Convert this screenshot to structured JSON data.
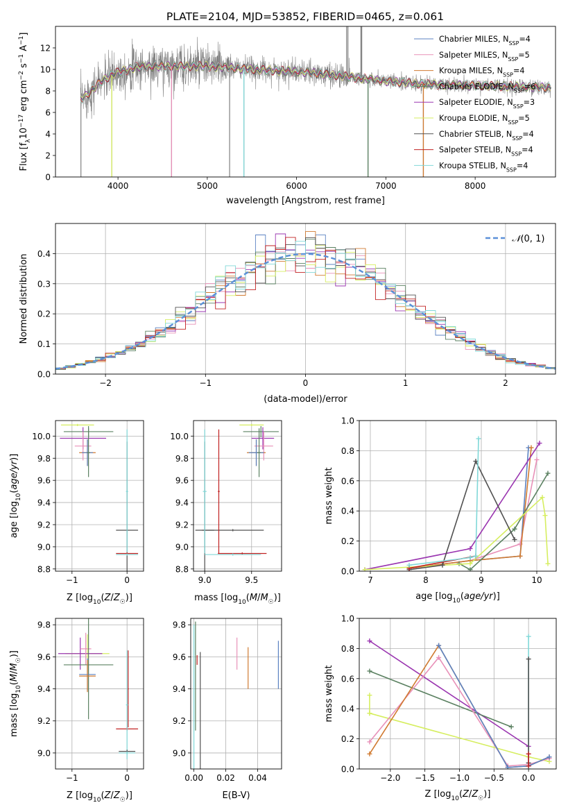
{
  "figure_title": "PLATE=2104, MJD=53852, FIBERID=0465, z=0.061",
  "colors": {
    "Chabrier MILES": "#5b82c2",
    "Salpeter MILES": "#e890b8",
    "Kroupa MILES": "#d07a30",
    "Chabrier ELODIE": "#5a8060",
    "Salpeter ELODIE": "#9a35b0",
    "Kroupa ELODIE": "#d6ee60",
    "Chabrier STELIB": "#505050",
    "Salpeter STELIB": "#c02020",
    "Kroupa STELIB": "#80d8d8",
    "normal": "#5b90d8",
    "data": "#808080"
  },
  "chart_data": [
    {
      "id": "spectrum",
      "type": "line",
      "xlabel": "wavelength [Angstrom, rest frame]",
      "ylabel": "Flux [f_λ10^-17 erg cm^-2 s^-1 A^-1]",
      "xlim": [
        3300,
        8900
      ],
      "ylim": [
        0,
        14
      ],
      "xticks": [
        4000,
        5000,
        6000,
        7000,
        8000
      ],
      "yticks": [
        0,
        2,
        4,
        6,
        8,
        10,
        12
      ],
      "grid": false,
      "legend": "top-right",
      "data_series": {
        "name": "data",
        "x_range": [
          3580,
          8850
        ]
      },
      "series": [
        {
          "name": "Chabrier MILES",
          "nssp": "4"
        },
        {
          "name": "Salpeter MILES",
          "nssp": "5"
        },
        {
          "name": "Kroupa MILES",
          "nssp": "4"
        },
        {
          "name": "Chabrier ELODIE",
          "nssp": "6"
        },
        {
          "name": "Salpeter ELODIE",
          "nssp": "3"
        },
        {
          "name": "Kroupa ELODIE",
          "nssp": "5"
        },
        {
          "name": "Chabrier STELIB",
          "nssp": "4"
        },
        {
          "name": "Salpeter STELIB",
          "nssp": "4"
        },
        {
          "name": "Kroupa STELIB",
          "nssp": "4"
        }
      ],
      "continuum_profile": [
        [
          3580,
          7.2
        ],
        [
          3650,
          7.6
        ],
        [
          3800,
          8.8
        ],
        [
          3950,
          9.6
        ],
        [
          4200,
          10.2
        ],
        [
          4500,
          10.3
        ],
        [
          5000,
          10.3
        ],
        [
          5500,
          10.0
        ],
        [
          6000,
          9.8
        ],
        [
          6500,
          9.4
        ],
        [
          7000,
          8.9
        ],
        [
          7500,
          8.6
        ],
        [
          8000,
          8.5
        ],
        [
          8500,
          8.4
        ],
        [
          8850,
          8.3
        ]
      ],
      "spikes": [
        {
          "x": 3585,
          "y": 0
        },
        {
          "x": 3930,
          "y": 0
        },
        {
          "x": 4600,
          "y": 0
        },
        {
          "x": 5250,
          "y": 0
        },
        {
          "x": 5410,
          "y": 0
        },
        {
          "x": 6560,
          "y": 14
        },
        {
          "x": 6575,
          "y": 14
        },
        {
          "x": 6720,
          "y": 14
        },
        {
          "x": 6730,
          "y": 14
        },
        {
          "x": 6800,
          "y": 0
        },
        {
          "x": 7420,
          "y": 0
        }
      ]
    },
    {
      "id": "residuals",
      "type": "histogram",
      "xlabel": "(data-model)/error",
      "ylabel": "Normed distribution",
      "xlim": [
        -2.5,
        2.5
      ],
      "ylim": [
        0,
        0.5
      ],
      "xticks": [
        -2,
        -1,
        0,
        1,
        2
      ],
      "yticks": [
        0,
        0.1,
        0.2,
        0.3,
        0.4
      ],
      "grid": true,
      "legend": "top-right",
      "reference_label": "N(0,1)",
      "bin_width": 0.1,
      "bin_start": -2.5,
      "n_bins": 50
    },
    {
      "id": "age-vs-Z",
      "type": "errorbar",
      "xlabel": "Z [log10(Z/Z⊙)]",
      "ylabel": "age [log10(age/yr)]",
      "xlim": [
        -1.3,
        0.3
      ],
      "ylim": [
        8.78,
        10.14
      ],
      "xticks": [
        -1,
        0
      ],
      "yticks": [
        8.8,
        9.0,
        9.2,
        9.4,
        9.6,
        9.8,
        10.0
      ],
      "grid": true,
      "points": [
        {
          "series": "Kroupa ELODIE",
          "x": -0.9,
          "y": 10.1,
          "xerr": 0.3,
          "yerr": 0.01
        },
        {
          "series": "Chabrier ELODIE",
          "x": -0.7,
          "y": 10.04,
          "xerr": 0.45,
          "yerr": 0.05
        },
        {
          "series": "Salpeter ELODIE",
          "x": -0.8,
          "y": 9.98,
          "xerr": 0.42,
          "yerr": 0.1
        },
        {
          "series": "Salpeter MILES",
          "x": -0.8,
          "y": 9.91,
          "xerr": 0.15,
          "yerr": 0.13
        },
        {
          "series": "Kroupa MILES",
          "x": -0.72,
          "y": 9.85,
          "xerr": 0.15,
          "yerr": 0.12
        },
        {
          "series": "Chabrier MILES",
          "x": -0.72,
          "y": 9.85,
          "xerr": 0.1,
          "yerr": 0.12
        },
        {
          "series": "Chabrier ELODIE",
          "x": -0.7,
          "y": 9.85,
          "xerr": 0.03,
          "yerr": 0.22
        },
        {
          "series": "Chabrier STELIB",
          "x": 0.0,
          "y": 9.15,
          "xerr": 0.2,
          "yerr": 0.8
        },
        {
          "series": "Kroupa STELIB",
          "x": 0.0,
          "y": 9.5,
          "xerr": 0.02,
          "yerr": 0.56
        },
        {
          "series": "Salpeter STELIB",
          "x": 0.0,
          "y": 8.94,
          "xerr": 0.2,
          "yerr": 0.01
        },
        {
          "series": "Kroupa STELIB",
          "x": 0.0,
          "y": 8.93,
          "xerr": 0.2,
          "yerr": 0.01
        }
      ]
    },
    {
      "id": "age-vs-mass",
      "type": "errorbar",
      "xlabel": "mass [log10(M/M⊙)]",
      "ylabel": "",
      "xlim": [
        8.88,
        9.82
      ],
      "ylim": [
        8.78,
        10.14
      ],
      "xticks": [
        9.0,
        9.5
      ],
      "yticks": [
        8.8,
        9.0,
        9.2,
        9.4,
        9.6,
        9.8,
        10.0
      ],
      "grid": true,
      "points": [
        {
          "series": "Kroupa ELODIE",
          "x": 9.5,
          "y": 10.1,
          "xerr": 0.13,
          "yerr": 0.01
        },
        {
          "series": "Chabrier ELODIE",
          "x": 9.6,
          "y": 10.04,
          "xerr": 0.19,
          "yerr": 0.05
        },
        {
          "series": "Salpeter ELODIE",
          "x": 9.62,
          "y": 9.98,
          "xerr": 0.12,
          "yerr": 0.1
        },
        {
          "series": "Salpeter MILES",
          "x": 9.63,
          "y": 9.91,
          "xerr": 0.1,
          "yerr": 0.13
        },
        {
          "series": "Kroupa MILES",
          "x": 9.55,
          "y": 9.85,
          "xerr": 0.1,
          "yerr": 0.12
        },
        {
          "series": "Chabrier MILES",
          "x": 9.55,
          "y": 9.85,
          "xerr": 0.08,
          "yerr": 0.12
        },
        {
          "series": "Chabrier ELODIE",
          "x": 9.58,
          "y": 9.85,
          "xerr": 0.02,
          "yerr": 0.22
        },
        {
          "series": "Chabrier STELIB",
          "x": 9.0,
          "y": 9.15,
          "xerr": 0.1,
          "yerr": 0.8
        },
        {
          "series": "Chabrier STELIB",
          "x": 9.3,
          "y": 9.15,
          "xerr": 0.33,
          "yerr": 0.01
        },
        {
          "series": "Salpeter STELIB",
          "x": 9.15,
          "y": 9.5,
          "xerr": 0.01,
          "yerr": 0.56
        },
        {
          "series": "Kroupa STELIB",
          "x": 9.0,
          "y": 9.5,
          "xerr": 0.02,
          "yerr": 0.56
        },
        {
          "series": "Salpeter STELIB",
          "x": 9.4,
          "y": 8.94,
          "xerr": 0.26,
          "yerr": 0.01
        },
        {
          "series": "Kroupa STELIB",
          "x": 9.3,
          "y": 8.93,
          "xerr": 0.3,
          "yerr": 0.01
        }
      ]
    },
    {
      "id": "weight-vs-age",
      "type": "line",
      "xlabel": "age [log10(age/yr)]",
      "ylabel": "mass weight",
      "xlim": [
        6.8,
        10.35
      ],
      "ylim": [
        0,
        1.0
      ],
      "xticks": [
        7,
        8,
        9,
        10
      ],
      "yticks": [
        0.0,
        0.2,
        0.4,
        0.6,
        0.8,
        1.0
      ],
      "grid": true,
      "series": [
        {
          "name": "Chabrier MILES",
          "x": [
            7.7,
            8.8,
            9.7,
            9.85
          ],
          "y": [
            0.02,
            0.07,
            0.1,
            0.82
          ]
        },
        {
          "name": "Salpeter MILES",
          "x": [
            7.7,
            8.8,
            9.7,
            10.0
          ],
          "y": [
            0.02,
            0.07,
            0.18,
            0.74
          ]
        },
        {
          "name": "Kroupa MILES",
          "x": [
            7.7,
            8.8,
            9.7,
            9.9
          ],
          "y": [
            0.02,
            0.07,
            0.1,
            0.82
          ]
        },
        {
          "name": "Chabrier ELODIE",
          "x": [
            8.6,
            8.8,
            9.6,
            10.2
          ],
          "y": [
            0.05,
            0.01,
            0.28,
            0.65
          ]
        },
        {
          "name": "Salpeter ELODIE",
          "x": [
            6.9,
            8.8,
            10.05
          ],
          "y": [
            0.01,
            0.15,
            0.85
          ]
        },
        {
          "name": "Kroupa ELODIE",
          "x": [
            6.9,
            8.8,
            10.1,
            10.15,
            10.2
          ],
          "y": [
            0.01,
            0.05,
            0.49,
            0.37,
            0.05
          ]
        },
        {
          "name": "Chabrier STELIB",
          "x": [
            7.7,
            8.3,
            8.9,
            9.6
          ],
          "y": [
            0.01,
            0.04,
            0.73,
            0.21
          ]
        },
        {
          "name": "Salpeter STELIB",
          "x": [
            7.7,
            8.9
          ],
          "y": [
            0.02,
            0.1
          ]
        },
        {
          "name": "Kroupa STELIB",
          "x": [
            7.7,
            8.8,
            8.9,
            8.95
          ],
          "y": [
            0.04,
            0.09,
            0.1,
            0.88
          ]
        }
      ]
    },
    {
      "id": "mass-vs-Z",
      "type": "errorbar",
      "xlabel": "Z [log10(Z/Z⊙)]",
      "ylabel": "mass [log10(M/M⊙)]",
      "xlim": [
        -1.3,
        0.3
      ],
      "ylim": [
        8.9,
        9.84
      ],
      "xticks": [
        -1,
        0
      ],
      "yticks": [
        9.0,
        9.2,
        9.4,
        9.6,
        9.8
      ],
      "grid": true,
      "points": [
        {
          "series": "Kroupa ELODIE",
          "x": -0.72,
          "y": 9.62,
          "xerr": 0.4,
          "yerr": 0.12
        },
        {
          "series": "Salpeter ELODIE",
          "x": -0.85,
          "y": 9.62,
          "xerr": 0.4,
          "yerr": 0.1
        },
        {
          "series": "Salpeter MILES",
          "x": -0.75,
          "y": 9.65,
          "xerr": 0.1,
          "yerr": 0.1
        },
        {
          "series": "Chabrier ELODIE",
          "x": -0.7,
          "y": 9.55,
          "xerr": 0.45,
          "yerr": 0.34
        },
        {
          "series": "Chabrier MILES",
          "x": -0.72,
          "y": 9.49,
          "xerr": 0.15,
          "yerr": 0.1
        },
        {
          "series": "Kroupa MILES",
          "x": -0.72,
          "y": 9.48,
          "xerr": 0.15,
          "yerr": 0.1
        },
        {
          "series": "Salpeter STELIB",
          "x": 0.0,
          "y": 9.15,
          "xerr": 0.2,
          "yerr": 0.01
        },
        {
          "series": "Salpeter STELIB",
          "x": 0.02,
          "y": 9.4,
          "xerr": 0.01,
          "yerr": 0.24
        },
        {
          "series": "Kroupa STELIB",
          "x": 0.0,
          "y": 9.3,
          "xerr": 0.02,
          "yerr": 0.34
        },
        {
          "series": "Chabrier STELIB",
          "x": 0.0,
          "y": 9.01,
          "xerr": 0.15,
          "yerr": 0.01
        },
        {
          "series": "Kroupa STELIB",
          "x": 0.0,
          "y": 9.0,
          "xerr": 0.15,
          "yerr": 0.01
        }
      ]
    },
    {
      "id": "mass-vs-EBV",
      "type": "errorbar",
      "xlabel": "E(B-V)",
      "ylabel": "",
      "xlim": [
        -0.002,
        0.055
      ],
      "ylim": [
        8.9,
        9.84
      ],
      "xticks": [
        0.0,
        0.02,
        0.04
      ],
      "yticks": [
        9.0,
        9.2,
        9.4,
        9.6,
        9.8
      ],
      "grid": true,
      "points": [
        {
          "series": "Chabrier ELODIE",
          "x": 0.001,
          "y": 9.48,
          "xerr": 0.0,
          "yerr": 0.34
        },
        {
          "series": "Kroupa STELIB",
          "x": 0.0,
          "y": 9.35,
          "xerr": 0.0,
          "yerr": 0.45
        },
        {
          "series": "Chabrier STELIB",
          "x": 0.004,
          "y": 9.25,
          "xerr": 0.0,
          "yerr": 0.38
        },
        {
          "series": "Salpeter STELIB",
          "x": 0.002,
          "y": 9.58,
          "xerr": 0.0,
          "yerr": 0.03
        },
        {
          "series": "Salpeter MILES",
          "x": 0.027,
          "y": 9.62,
          "xerr": 0.0,
          "yerr": 0.1
        },
        {
          "series": "Kroupa MILES",
          "x": 0.034,
          "y": 9.53,
          "xerr": 0.0,
          "yerr": 0.13
        },
        {
          "series": "Chabrier MILES",
          "x": 0.053,
          "y": 9.55,
          "xerr": 0.0,
          "yerr": 0.15
        }
      ]
    },
    {
      "id": "weight-vs-Z",
      "type": "line",
      "xlabel": "Z [log10(Z/Z⊙)]",
      "ylabel": "mass weight",
      "xlim": [
        -2.45,
        0.4
      ],
      "ylim": [
        0,
        1.0
      ],
      "xticks": [
        -2.0,
        -1.5,
        -1.0,
        -0.5,
        0.0
      ],
      "yticks": [
        0.0,
        0.2,
        0.4,
        0.6,
        0.8,
        1.0
      ],
      "grid": true,
      "series": [
        {
          "name": "Salpeter ELODIE",
          "x": [
            -2.3,
            0.0
          ],
          "y": [
            0.85,
            0.15
          ]
        },
        {
          "name": "Chabrier ELODIE",
          "x": [
            -2.3,
            -0.25
          ],
          "y": [
            0.65,
            0.28
          ]
        },
        {
          "name": "Kroupa ELODIE",
          "x": [
            -2.3,
            0.0,
            0.3
          ],
          "y": [
            0.37,
            0.08,
            0.05
          ]
        },
        {
          "name": "Kroupa ELODIE",
          "x": [
            -2.3,
            -2.3
          ],
          "y": [
            0.37,
            0.49
          ]
        },
        {
          "name": "Salpeter MILES",
          "x": [
            -2.3,
            -1.3,
            -0.3,
            0.0,
            0.3
          ],
          "y": [
            0.18,
            0.74,
            0.02,
            0.03,
            0.07
          ]
        },
        {
          "name": "Kroupa MILES",
          "x": [
            -2.3,
            -1.3,
            -0.3,
            0.0,
            0.3
          ],
          "y": [
            0.1,
            0.82,
            0.01,
            0.02,
            0.08
          ]
        },
        {
          "name": "Chabrier MILES",
          "x": [
            -1.3,
            -0.3,
            0.0,
            0.3
          ],
          "y": [
            0.82,
            0.01,
            0.02,
            0.08
          ]
        },
        {
          "name": "Kroupa STELIB",
          "x": [
            0.0,
            0.0
          ],
          "y": [
            0.0,
            0.88
          ]
        },
        {
          "name": "Chabrier STELIB",
          "x": [
            0.0,
            0.0
          ],
          "y": [
            0.04,
            0.73
          ]
        },
        {
          "name": "Salpeter STELIB",
          "x": [
            0.0,
            0.0
          ],
          "y": [
            0.02,
            0.1
          ]
        }
      ]
    }
  ]
}
